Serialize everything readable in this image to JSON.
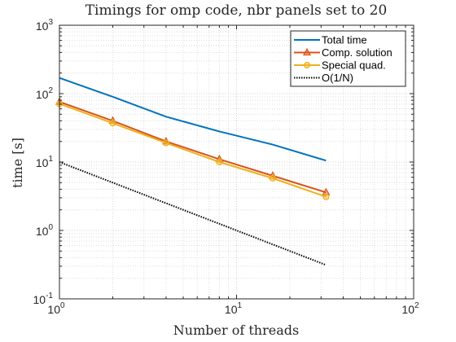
{
  "chart_data": {
    "type": "line",
    "title": "Timings for omp code, nbr panels set to 20",
    "xlabel": "Number of threads",
    "ylabel": "time [s]",
    "x_scale": "log",
    "y_scale": "log",
    "xlim": [
      1,
      100
    ],
    "ylim": [
      0.1,
      1000
    ],
    "x_ticks": [
      {
        "value": 1,
        "base": "10",
        "exp": "0"
      },
      {
        "value": 10,
        "base": "10",
        "exp": "1"
      },
      {
        "value": 100,
        "base": "10",
        "exp": "2"
      }
    ],
    "y_ticks": [
      {
        "value": 0.1,
        "base": "10",
        "exp": "-1"
      },
      {
        "value": 1,
        "base": "10",
        "exp": "0"
      },
      {
        "value": 10,
        "base": "10",
        "exp": "1"
      },
      {
        "value": 100,
        "base": "10",
        "exp": "2"
      },
      {
        "value": 1000,
        "base": "10",
        "exp": "3"
      }
    ],
    "grid": true,
    "minor_grid": true,
    "legend_position": "top-right",
    "x": [
      1,
      2,
      4,
      8,
      16,
      32
    ],
    "series": [
      {
        "name": "Total time",
        "color": "#0072BD",
        "marker": "none",
        "dash": "solid",
        "values": [
          170,
          90,
          46,
          28,
          18,
          10.5
        ]
      },
      {
        "name": "Comp. solution",
        "color": "#D95319",
        "marker": "triangle",
        "dash": "solid",
        "values": [
          76,
          40,
          20,
          11,
          6.3,
          3.6
        ]
      },
      {
        "name": "Special quad.",
        "color": "#EDB120",
        "marker": "circle",
        "dash": "solid",
        "values": [
          71,
          37,
          19,
          10,
          5.8,
          3.1
        ]
      },
      {
        "name": "O(1/N)",
        "color": "#000000",
        "marker": "none",
        "dash": "dotted",
        "values": [
          10,
          5,
          2.5,
          1.25,
          0.625,
          0.3125
        ]
      }
    ]
  }
}
